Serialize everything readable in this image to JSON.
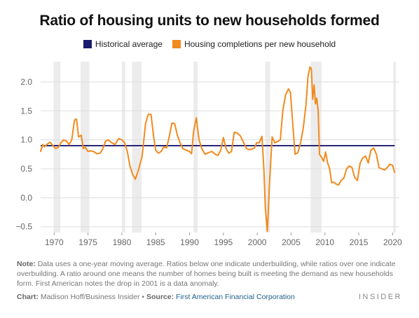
{
  "title": "Ratio of housing units to new households formed",
  "legend": {
    "historical": "Historical average",
    "completions": "Housing completions per new household"
  },
  "colors": {
    "historical": "#1a1a6e",
    "completions": "#f28a1e",
    "recession": "#ececec",
    "grid": "#dddddd"
  },
  "note": {
    "label": "Note:",
    "text": "Data uses a one-year moving average. Ratios below one indicate underbuilding, while ratios over one indicate overbuilding. A ratio around one means the number of homes being built is meeting the demand as new households form. First American notes the drop in 2001 is a data anomaly."
  },
  "credit": {
    "chart_label": "Chart:",
    "chart_text": "Madison Hoff/Business Insider",
    "bullet": "•",
    "source_label": "Source:",
    "source_text": "First American Financial Corporation"
  },
  "brand": "INSIDER",
  "chart_data": {
    "type": "line",
    "title": "Ratio of housing units to new households formed",
    "xlabel": "",
    "ylabel": "",
    "xlim": [
      1968,
      2021
    ],
    "ylim": [
      -0.6,
      2.35
    ],
    "x_ticks": [
      1970,
      1975,
      1980,
      1985,
      1990,
      1995,
      2000,
      2005,
      2010,
      2015,
      2020
    ],
    "y_ticks": [
      -0.5,
      0.0,
      0.5,
      1.0,
      1.5,
      2.0
    ],
    "y_tick_labels": [
      "−0.5",
      "0.0",
      "0.5",
      "1.0",
      "1.5",
      "2.0"
    ],
    "grid": true,
    "legend_position": "top-center",
    "recession_bands": [
      [
        1969.9,
        1970.9
      ],
      [
        1973.9,
        1975.2
      ],
      [
        1980.0,
        1980.5
      ],
      [
        1981.5,
        1982.9
      ],
      [
        1990.6,
        1991.2
      ],
      [
        2001.2,
        2001.9
      ],
      [
        2007.9,
        2009.5
      ],
      [
        2020.1,
        2020.5
      ]
    ],
    "historical_average": 0.9,
    "series": [
      {
        "name": "Housing completions per new household",
        "x": [
          1968.0,
          1968.3,
          1968.6,
          1969.0,
          1969.4,
          1969.8,
          1970.2,
          1970.6,
          1971.0,
          1971.4,
          1971.8,
          1972.2,
          1972.6,
          1973.0,
          1973.3,
          1973.6,
          1974.0,
          1974.3,
          1974.6,
          1975.0,
          1975.4,
          1975.8,
          1976.3,
          1976.8,
          1977.2,
          1977.6,
          1978.0,
          1978.5,
          1979.0,
          1979.5,
          1980.0,
          1980.4,
          1980.8,
          1981.2,
          1981.6,
          1982.0,
          1982.5,
          1983.0,
          1983.5,
          1983.9,
          1984.3,
          1984.7,
          1985.0,
          1985.4,
          1985.8,
          1986.2,
          1986.6,
          1987.0,
          1987.4,
          1987.8,
          1988.2,
          1988.6,
          1989.0,
          1989.5,
          1990.0,
          1990.3,
          1990.6,
          1991.0,
          1991.4,
          1991.8,
          1992.3,
          1992.8,
          1993.3,
          1993.8,
          1994.2,
          1994.6,
          1995.0,
          1995.4,
          1995.8,
          1996.2,
          1996.6,
          1997.0,
          1997.5,
          1998.0,
          1998.4,
          1998.8,
          1999.2,
          1999.6,
          1999.9,
          2000.3,
          2000.7,
          2001.0,
          2001.2,
          2001.5,
          2001.8,
          2002.2,
          2002.6,
          2003.0,
          2003.4,
          2003.8,
          2004.2,
          2004.6,
          2004.9,
          2005.3,
          2005.6,
          2006.0,
          2006.4,
          2006.8,
          2007.2,
          2007.5,
          2007.8,
          2008.0,
          2008.2,
          2008.4,
          2008.6,
          2008.8,
          2009.0,
          2009.2,
          2009.5,
          2009.8,
          2010.1,
          2010.4,
          2010.7,
          2011.0,
          2011.3,
          2011.6,
          2012.0,
          2012.4,
          2012.8,
          2013.2,
          2013.6,
          2014.0,
          2014.4,
          2014.8,
          2015.2,
          2015.6,
          2016.0,
          2016.4,
          2016.8,
          2017.2,
          2017.6,
          2018.0,
          2018.4,
          2018.8,
          2019.2,
          2019.6,
          2020.0,
          2020.3
        ],
        "y": [
          0.8,
          0.92,
          0.88,
          0.93,
          0.96,
          0.9,
          0.85,
          0.87,
          0.95,
          1.0,
          0.98,
          0.92,
          1.0,
          1.34,
          1.36,
          1.05,
          1.08,
          0.85,
          0.87,
          0.8,
          0.81,
          0.8,
          0.76,
          0.77,
          0.85,
          0.98,
          1.0,
          0.95,
          0.92,
          1.02,
          1.0,
          0.95,
          0.8,
          0.55,
          0.4,
          0.32,
          0.5,
          0.72,
          1.28,
          1.44,
          1.44,
          1.05,
          0.82,
          0.77,
          0.8,
          0.88,
          0.86,
          1.05,
          1.29,
          1.28,
          1.08,
          0.95,
          0.85,
          0.82,
          0.8,
          0.76,
          1.15,
          1.38,
          1.0,
          0.85,
          0.75,
          0.78,
          0.8,
          0.75,
          0.73,
          0.82,
          1.04,
          0.85,
          0.77,
          0.8,
          1.13,
          1.12,
          1.07,
          0.95,
          0.85,
          0.83,
          0.84,
          0.86,
          0.95,
          0.95,
          1.06,
          0.45,
          -0.18,
          -0.58,
          0.22,
          1.05,
          0.95,
          0.97,
          1.0,
          1.52,
          1.78,
          1.88,
          1.82,
          1.2,
          0.75,
          0.78,
          0.95,
          1.2,
          1.6,
          2.1,
          2.26,
          2.22,
          1.7,
          1.95,
          1.62,
          1.72,
          1.5,
          0.75,
          0.7,
          0.63,
          0.79,
          0.6,
          0.5,
          0.26,
          0.27,
          0.24,
          0.22,
          0.3,
          0.34,
          0.5,
          0.55,
          0.52,
          0.35,
          0.3,
          0.6,
          0.69,
          0.72,
          0.6,
          0.82,
          0.86,
          0.75,
          0.52,
          0.5,
          0.48,
          0.52,
          0.58,
          0.56,
          0.44
        ]
      },
      {
        "name": "Historical average",
        "x": [
          1968.0,
          2020.3
        ],
        "y": [
          0.9,
          0.9
        ]
      }
    ]
  }
}
